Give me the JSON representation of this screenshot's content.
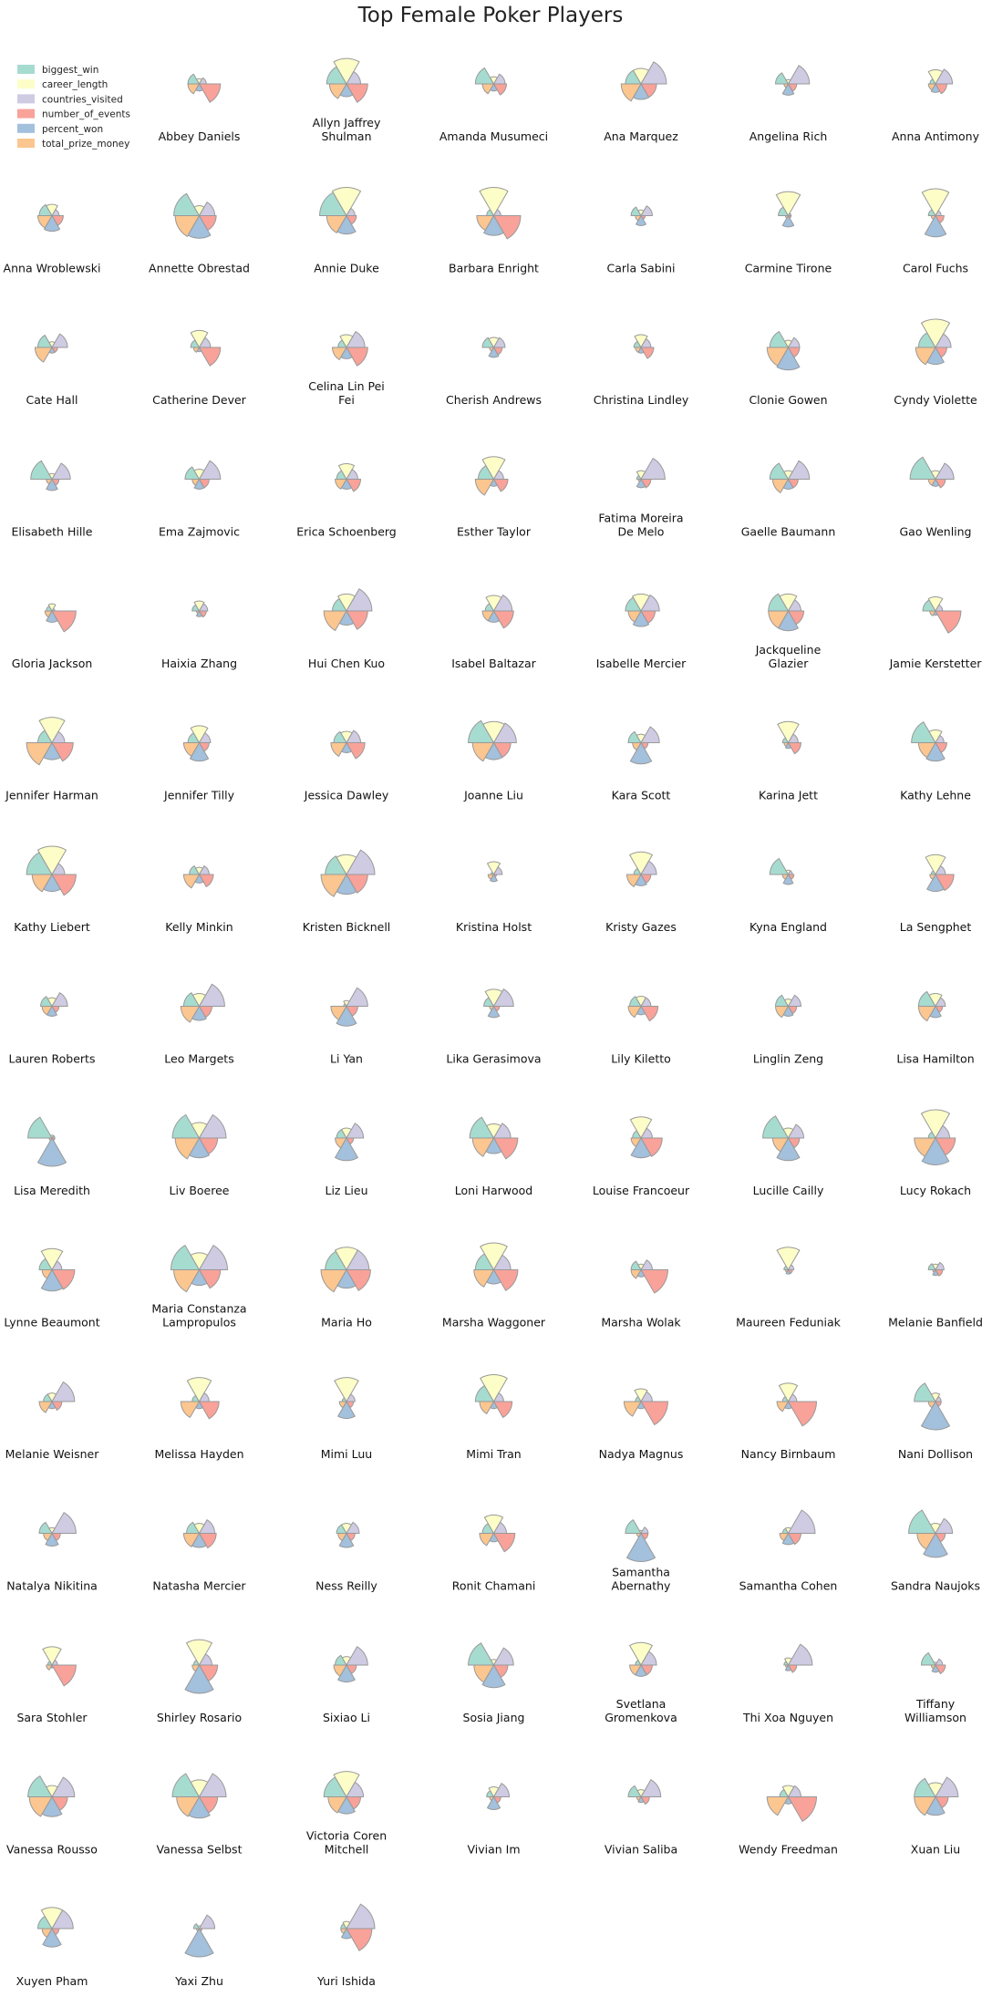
{
  "chart_data": {
    "type": "polar-area-small-multiples",
    "title": "Top Female Poker Players",
    "legend_position": "top-left",
    "series": [
      {
        "name": "biggest_win",
        "color": "#a6dcd0"
      },
      {
        "name": "career_length",
        "color": "#fdfdc8"
      },
      {
        "name": "countries_visited",
        "color": "#cfcbe3"
      },
      {
        "name": "number_of_events",
        "color": "#f9a299"
      },
      {
        "name": "percent_won",
        "color": "#a3c0dc"
      },
      {
        "name": "total_prize_money",
        "color": "#fbc68f"
      }
    ],
    "panels": [
      {
        "name": "Abbey Daniels",
        "values": [
          0.4,
          0.18,
          0.25,
          0.75,
          0.25,
          0.4
        ]
      },
      {
        "name": "Allyn Jaffrey Shulman",
        "values": [
          0.7,
          0.9,
          0.5,
          0.75,
          0.45,
          0.6
        ]
      },
      {
        "name": "Amanda Musumeci",
        "values": [
          0.65,
          0.25,
          0.4,
          0.45,
          0.25,
          0.4
        ]
      },
      {
        "name": "Ana Marquez",
        "values": [
          0.55,
          0.55,
          0.9,
          0.55,
          0.55,
          0.7
        ]
      },
      {
        "name": "Angelina Rich",
        "values": [
          0.45,
          0.15,
          0.75,
          0.3,
          0.4,
          0.15
        ]
      },
      {
        "name": "Anna Antimony",
        "values": [
          0.2,
          0.5,
          0.6,
          0.4,
          0.3,
          0.25
        ]
      },
      {
        "name": "Anna Wroblewski",
        "values": [
          0.45,
          0.4,
          0.25,
          0.4,
          0.55,
          0.5
        ]
      },
      {
        "name": "Annette Obrestad",
        "values": [
          0.9,
          0.35,
          0.55,
          0.6,
          0.8,
          0.85
        ]
      },
      {
        "name": "Annie Duke",
        "values": [
          0.95,
          1.0,
          0.3,
          0.35,
          0.65,
          0.7
        ]
      },
      {
        "name": "Barbara Enright",
        "values": [
          0.25,
          1.0,
          0.25,
          0.95,
          0.7,
          0.6
        ]
      },
      {
        "name": "Carla Sabini",
        "values": [
          0.35,
          0.2,
          0.4,
          0.15,
          0.35,
          0.2
        ]
      },
      {
        "name": "Carmine Tirone",
        "values": [
          0.35,
          0.85,
          0.1,
          0.1,
          0.4,
          0.1
        ]
      },
      {
        "name": "Carol Fuchs",
        "values": [
          0.25,
          0.95,
          0.2,
          0.3,
          0.75,
          0.15
        ]
      },
      {
        "name": "Cate Hall",
        "values": [
          0.5,
          0.2,
          0.55,
          0.2,
          0.2,
          0.6
        ]
      },
      {
        "name": "Catherine Dever",
        "values": [
          0.3,
          0.6,
          0.4,
          0.75,
          0.15,
          0.2
        ]
      },
      {
        "name": "Celina Lin Pei Fei",
        "values": [
          0.3,
          0.45,
          0.65,
          0.75,
          0.4,
          0.5
        ]
      },
      {
        "name": "Cherish Andrews",
        "values": [
          0.4,
          0.35,
          0.4,
          0.3,
          0.35,
          0.15
        ]
      },
      {
        "name": "Christina Lindley",
        "values": [
          0.25,
          0.45,
          0.35,
          0.45,
          0.2,
          0.2
        ]
      },
      {
        "name": "Clonie Gowen",
        "values": [
          0.65,
          0.25,
          0.4,
          0.4,
          0.8,
          0.75
        ]
      },
      {
        "name": "Cyndy Violette",
        "values": [
          0.6,
          1.0,
          0.55,
          0.4,
          0.6,
          0.7
        ]
      },
      {
        "name": "Elisabeth Hille",
        "values": [
          0.75,
          0.2,
          0.65,
          0.25,
          0.4,
          0.2
        ]
      },
      {
        "name": "Ema Zajmovic",
        "values": [
          0.5,
          0.35,
          0.75,
          0.35,
          0.35,
          0.25
        ]
      },
      {
        "name": "Erica Schoenberg",
        "values": [
          0.35,
          0.55,
          0.4,
          0.5,
          0.35,
          0.4
        ]
      },
      {
        "name": "Esther Taylor",
        "values": [
          0.55,
          0.8,
          0.35,
          0.5,
          0.25,
          0.65
        ]
      },
      {
        "name": "Fatima Moreira De Melo",
        "values": [
          0.15,
          0.3,
          0.85,
          0.35,
          0.3,
          0.1
        ]
      },
      {
        "name": "Gaelle Baumann",
        "values": [
          0.65,
          0.3,
          0.75,
          0.35,
          0.35,
          0.55
        ]
      },
      {
        "name": "Gao Wenling",
        "values": [
          0.9,
          0.3,
          0.65,
          0.35,
          0.25,
          0.25
        ]
      },
      {
        "name": "Gloria Jackson",
        "values": [
          0.2,
          0.25,
          0.1,
          0.85,
          0.4,
          0.25
        ]
      },
      {
        "name": "Haixia Zhang",
        "values": [
          0.25,
          0.35,
          0.3,
          0.25,
          0.2,
          0.1
        ]
      },
      {
        "name": "Hui Chen Kuo",
        "values": [
          0.5,
          0.6,
          0.9,
          0.75,
          0.5,
          0.8
        ]
      },
      {
        "name": "Isabel Baltazar",
        "values": [
          0.3,
          0.55,
          0.65,
          0.7,
          0.4,
          0.4
        ]
      },
      {
        "name": "Isabelle Mercier",
        "values": [
          0.55,
          0.6,
          0.65,
          0.5,
          0.55,
          0.45
        ]
      },
      {
        "name": "Jackqueline Glazier",
        "values": [
          0.7,
          0.6,
          0.45,
          0.55,
          0.7,
          0.7
        ]
      },
      {
        "name": "Jamie Kerstetter",
        "values": [
          0.45,
          0.5,
          0.25,
          0.9,
          0.15,
          0.2
        ]
      },
      {
        "name": "Jennifer Harman",
        "values": [
          0.5,
          0.9,
          0.45,
          0.75,
          0.6,
          0.9
        ]
      },
      {
        "name": "Jennifer Tilly",
        "values": [
          0.4,
          0.6,
          0.4,
          0.35,
          0.65,
          0.55
        ]
      },
      {
        "name": "Jessica Dawley",
        "values": [
          0.45,
          0.4,
          0.5,
          0.65,
          0.35,
          0.55
        ]
      },
      {
        "name": "Joanne Liu",
        "values": [
          0.9,
          0.75,
          0.8,
          0.6,
          0.6,
          0.75
        ]
      },
      {
        "name": "Kara Scott",
        "values": [
          0.45,
          0.3,
          0.65,
          0.25,
          0.75,
          0.3
        ]
      },
      {
        "name": "Karina Jett",
        "values": [
          0.2,
          0.75,
          0.35,
          0.45,
          0.2,
          0.15
        ]
      },
      {
        "name": "Kathy Lehne",
        "values": [
          0.85,
          0.45,
          0.3,
          0.4,
          0.65,
          0.6
        ]
      },
      {
        "name": "Kathy Liebert",
        "values": [
          0.9,
          1.0,
          0.45,
          0.85,
          0.6,
          0.7
        ]
      },
      {
        "name": "Kelly Minkin",
        "values": [
          0.35,
          0.25,
          0.35,
          0.5,
          0.3,
          0.55
        ]
      },
      {
        "name": "Kristen Bicknell",
        "values": [
          0.75,
          0.7,
          1.0,
          0.75,
          0.7,
          0.9
        ]
      },
      {
        "name": "Kristina Holst",
        "values": [
          0.1,
          0.45,
          0.3,
          0.1,
          0.25,
          0.2
        ]
      },
      {
        "name": "Kristy Gazes",
        "values": [
          0.25,
          0.8,
          0.55,
          0.35,
          0.4,
          0.5
        ]
      },
      {
        "name": "Kyna England",
        "values": [
          0.65,
          0.15,
          0.15,
          0.2,
          0.35,
          0.2
        ]
      },
      {
        "name": "La Sengphet",
        "values": [
          0.15,
          0.7,
          0.35,
          0.65,
          0.6,
          0.2
        ]
      },
      {
        "name": "Lauren Roberts",
        "values": [
          0.4,
          0.3,
          0.55,
          0.25,
          0.35,
          0.35
        ]
      },
      {
        "name": "Leo Margets",
        "values": [
          0.55,
          0.45,
          0.9,
          0.45,
          0.5,
          0.65
        ]
      },
      {
        "name": "Li Yan",
        "values": [
          0.1,
          0.2,
          0.75,
          0.4,
          0.7,
          0.55
        ]
      },
      {
        "name": "Lika Gerasimova",
        "values": [
          0.35,
          0.6,
          0.7,
          0.2,
          0.4,
          0.15
        ]
      },
      {
        "name": "Lily Kiletto",
        "values": [
          0.4,
          0.35,
          0.35,
          0.6,
          0.3,
          0.45
        ]
      },
      {
        "name": "Linglin Zeng",
        "values": [
          0.45,
          0.25,
          0.45,
          0.3,
          0.35,
          0.45
        ]
      },
      {
        "name": "Lisa Hamilton",
        "values": [
          0.6,
          0.45,
          0.35,
          0.25,
          0.4,
          0.6
        ]
      },
      {
        "name": "Lisa Meredith",
        "values": [
          0.85,
          0.1,
          0.1,
          0.1,
          1.0,
          0.1
        ]
      },
      {
        "name": "Liv Boeree",
        "values": [
          0.95,
          0.55,
          0.95,
          0.65,
          0.7,
          0.85
        ]
      },
      {
        "name": "Liz Lieu",
        "values": [
          0.35,
          0.35,
          0.6,
          0.25,
          0.8,
          0.4
        ]
      },
      {
        "name": "Loni Harwood",
        "values": [
          0.85,
          0.5,
          0.6,
          0.85,
          0.55,
          0.75
        ]
      },
      {
        "name": "Louise Francoeur",
        "values": [
          0.3,
          0.75,
          0.4,
          0.75,
          0.7,
          0.35
        ]
      },
      {
        "name": "Lucille Cailly",
        "values": [
          0.9,
          0.35,
          0.55,
          0.4,
          0.8,
          0.55
        ]
      },
      {
        "name": "Lucy Rokach",
        "values": [
          0.25,
          1.0,
          0.5,
          0.7,
          0.95,
          0.75
        ]
      },
      {
        "name": "Lynne Beaumont",
        "values": [
          0.45,
          0.75,
          0.35,
          0.8,
          0.75,
          0.35
        ]
      },
      {
        "name": "Maria Constanza Lampropulos",
        "values": [
          1.0,
          0.6,
          1.0,
          0.75,
          0.55,
          0.9
        ]
      },
      {
        "name": "Maria Ho",
        "values": [
          0.75,
          0.8,
          0.8,
          0.85,
          0.65,
          0.9
        ]
      },
      {
        "name": "Marsha Waggoner",
        "values": [
          0.65,
          0.95,
          0.6,
          0.85,
          0.5,
          0.7
        ]
      },
      {
        "name": "Marsha Wolak",
        "values": [
          0.35,
          0.2,
          0.4,
          0.95,
          0.25,
          0.35
        ]
      },
      {
        "name": "Maureen Feduniak",
        "values": [
          0.15,
          0.8,
          0.2,
          0.15,
          0.15,
          0.1
        ]
      },
      {
        "name": "Melanie Banfield",
        "values": [
          0.25,
          0.2,
          0.3,
          0.25,
          0.2,
          0.1
        ]
      },
      {
        "name": "Melanie Weisner",
        "values": [
          0.3,
          0.3,
          0.8,
          0.35,
          0.25,
          0.45
        ]
      },
      {
        "name": "Melissa Hayden",
        "values": [
          0.25,
          0.85,
          0.35,
          0.7,
          0.25,
          0.65
        ]
      },
      {
        "name": "Mimi Luu",
        "values": [
          0.15,
          0.85,
          0.3,
          0.25,
          0.6,
          0.25
        ]
      },
      {
        "name": "Mimi Tran",
        "values": [
          0.65,
          0.95,
          0.35,
          0.65,
          0.25,
          0.5
        ]
      },
      {
        "name": "Nadya Magnus",
        "values": [
          0.2,
          0.45,
          0.4,
          0.95,
          0.25,
          0.6
        ]
      },
      {
        "name": "Nancy Birnbaum",
        "values": [
          0.2,
          0.65,
          0.3,
          1.0,
          0.25,
          0.4
        ]
      },
      {
        "name": "Nani Dollison",
        "values": [
          0.75,
          0.3,
          0.2,
          0.2,
          1.0,
          0.25
        ]
      },
      {
        "name": "Natalya Nikitina",
        "values": [
          0.45,
          0.2,
          0.85,
          0.3,
          0.45,
          0.3
        ]
      },
      {
        "name": "Natasha Mercier",
        "values": [
          0.45,
          0.35,
          0.55,
          0.6,
          0.5,
          0.55
        ]
      },
      {
        "name": "Ness Reilly",
        "values": [
          0.35,
          0.35,
          0.45,
          0.3,
          0.5,
          0.3
        ]
      },
      {
        "name": "Ronit Chamani",
        "values": [
          0.4,
          0.65,
          0.45,
          0.75,
          0.3,
          0.5
        ]
      },
      {
        "name": "Samantha Abernathy",
        "values": [
          0.55,
          0.1,
          0.25,
          0.25,
          1.0,
          0.15
        ]
      },
      {
        "name": "Samantha Cohen",
        "values": [
          0.2,
          0.2,
          0.95,
          0.45,
          0.4,
          0.3
        ]
      },
      {
        "name": "Sandra Naujoks",
        "values": [
          0.95,
          0.35,
          0.6,
          0.35,
          0.85,
          0.65
        ]
      },
      {
        "name": "Sara Stohler",
        "values": [
          0.15,
          0.65,
          0.2,
          0.85,
          0.1,
          0.2
        ]
      },
      {
        "name": "Shirley Rosario",
        "values": [
          0.2,
          0.9,
          0.45,
          0.65,
          1.0,
          0.25
        ]
      },
      {
        "name": "Sixiao Li",
        "values": [
          0.4,
          0.3,
          0.75,
          0.35,
          0.6,
          0.45
        ]
      },
      {
        "name": "Sosia Jiang",
        "values": [
          0.9,
          0.2,
          0.7,
          0.5,
          0.8,
          0.7
        ]
      },
      {
        "name": "Svetlana Gromenkova",
        "values": [
          0.2,
          0.8,
          0.55,
          0.4,
          0.4,
          0.4
        ]
      },
      {
        "name": "Thi Xoa Nguyen",
        "values": [
          0.15,
          0.25,
          0.85,
          0.3,
          0.2,
          0.1
        ]
      },
      {
        "name": "Tiffany Williamson",
        "values": [
          0.5,
          0.1,
          0.25,
          0.35,
          0.25,
          0.15
        ]
      },
      {
        "name": "Vanessa Rousso",
        "values": [
          0.85,
          0.4,
          0.8,
          0.55,
          0.7,
          0.8
        ]
      },
      {
        "name": "Vanessa Selbst",
        "values": [
          0.95,
          0.6,
          0.95,
          0.65,
          0.75,
          0.8
        ]
      },
      {
        "name": "Victoria Coren Mitchell",
        "values": [
          0.8,
          0.9,
          0.6,
          0.5,
          0.6,
          0.65
        ]
      },
      {
        "name": "Vivian Im",
        "values": [
          0.25,
          0.35,
          0.55,
          0.25,
          0.45,
          0.15
        ]
      },
      {
        "name": "Vivian Saliba",
        "values": [
          0.45,
          0.25,
          0.7,
          0.3,
          0.2,
          0.15
        ]
      },
      {
        "name": "Wendy Freedman",
        "values": [
          0.3,
          0.4,
          0.45,
          1.0,
          0.25,
          0.75
        ]
      },
      {
        "name": "Xuan Liu",
        "values": [
          0.75,
          0.5,
          0.8,
          0.45,
          0.65,
          0.75
        ]
      },
      {
        "name": "Xuyen Pham",
        "values": [
          0.5,
          0.75,
          0.75,
          0.25,
          0.65,
          0.35
        ]
      },
      {
        "name": "Yaxi Zhu",
        "values": [
          0.2,
          0.1,
          0.55,
          0.1,
          1.0,
          0.1
        ]
      },
      {
        "name": "Yuri Ishida",
        "values": [
          0.2,
          0.25,
          1.0,
          0.9,
          0.35,
          0.2
        ]
      }
    ]
  }
}
